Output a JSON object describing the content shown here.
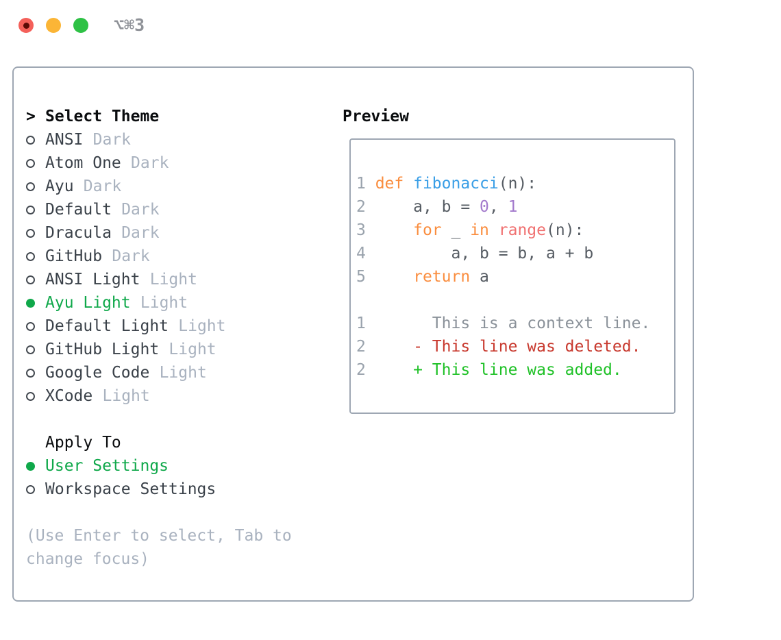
{
  "window": {
    "title": "⌥⌘3",
    "traffic_lights": {
      "close": "#f4605a",
      "minimize": "#fbb536",
      "zoom": "#2ec145"
    }
  },
  "theme_panel": {
    "header": {
      "prefix": ">",
      "label": "Select Theme"
    },
    "themes": [
      {
        "name": "ANSI",
        "variant": "Dark",
        "selected": false
      },
      {
        "name": "Atom One",
        "variant": "Dark",
        "selected": false
      },
      {
        "name": "Ayu",
        "variant": "Dark",
        "selected": false
      },
      {
        "name": "Default",
        "variant": "Dark",
        "selected": false
      },
      {
        "name": "Dracula",
        "variant": "Dark",
        "selected": false
      },
      {
        "name": "GitHub",
        "variant": "Dark",
        "selected": false
      },
      {
        "name": "ANSI Light",
        "variant": "Light",
        "selected": false
      },
      {
        "name": "Ayu Light",
        "variant": "Light",
        "selected": true
      },
      {
        "name": "Default Light",
        "variant": "Light",
        "selected": false
      },
      {
        "name": "GitHub Light",
        "variant": "Light",
        "selected": false
      },
      {
        "name": "Google Code",
        "variant": "Light",
        "selected": false
      },
      {
        "name": "XCode",
        "variant": "Light",
        "selected": false
      }
    ],
    "apply_to": {
      "label": "Apply To",
      "options": [
        {
          "label": "User Settings",
          "selected": true
        },
        {
          "label": "Workspace Settings",
          "selected": false
        }
      ]
    },
    "hint": "(Use Enter to select, Tab to change focus)"
  },
  "preview": {
    "label": "Preview",
    "lines": [
      {
        "segments": [
          [
            "ln",
            "1 "
          ],
          [
            "kw",
            "def"
          ],
          [
            "code",
            " "
          ],
          [
            "fn",
            "fibonacci"
          ],
          [
            "code",
            "(n):"
          ]
        ]
      },
      {
        "segments": [
          [
            "ln",
            "2"
          ],
          [
            "code",
            "     a, b = "
          ],
          [
            "num",
            "0"
          ],
          [
            "code",
            ", "
          ],
          [
            "num",
            "1"
          ]
        ]
      },
      {
        "segments": [
          [
            "ln",
            "3"
          ],
          [
            "code",
            "     "
          ],
          [
            "kw",
            "for"
          ],
          [
            "code",
            " _ "
          ],
          [
            "kw",
            "in"
          ],
          [
            "code",
            " "
          ],
          [
            "call",
            "range"
          ],
          [
            "code",
            "(n):"
          ]
        ]
      },
      {
        "segments": [
          [
            "ln",
            "4"
          ],
          [
            "code",
            "         a, b = b, a + b"
          ]
        ]
      },
      {
        "segments": [
          [
            "ln",
            "5"
          ],
          [
            "code",
            "     "
          ],
          [
            "kw",
            "return"
          ],
          [
            "code",
            " a"
          ]
        ]
      },
      {
        "segments": []
      },
      {
        "segments": [
          [
            "ln",
            "1"
          ],
          [
            "ctx",
            "       This is a context line."
          ]
        ]
      },
      {
        "segments": [
          [
            "ln",
            "2"
          ],
          [
            "del",
            "     - This line was deleted."
          ]
        ]
      },
      {
        "segments": [
          [
            "ln",
            "2"
          ],
          [
            "add",
            "     + This line was added."
          ]
        ]
      }
    ]
  },
  "colors": {
    "accent_green": "#0fa84a",
    "diff_red": "#c8392e",
    "diff_green": "#1fc127",
    "kw": "#fa8d3e",
    "fn": "#399ee6",
    "num": "#a37acc",
    "call": "#f07171",
    "code": "#565c63",
    "ln": "#99a2ac",
    "ctx": "#8a9199",
    "item_text": "#3a4149",
    "variant_text": "#a9b2bf",
    "hint_text": "#a9b2bf",
    "border": "#9ea7b3",
    "title_text": "#8f9298",
    "header_text": "#0a0c0e"
  }
}
